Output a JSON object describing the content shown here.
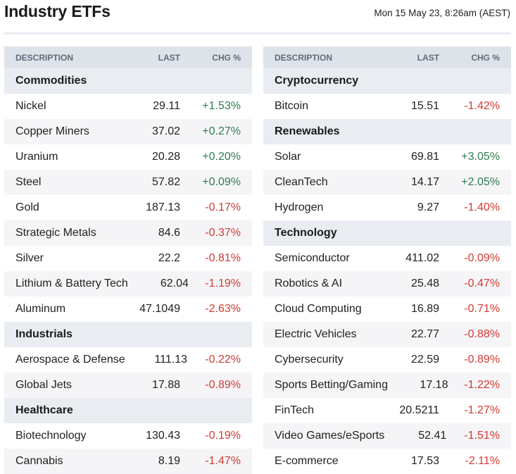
{
  "page": {
    "title": "Industry ETFs",
    "timestamp": "Mon 15 May 23, 8:26am (AEST)"
  },
  "columns": {
    "description": "DESCRIPTION",
    "last": "LAST",
    "chg": "CHG %"
  },
  "colors": {
    "positive": "#2f7d4e",
    "negative": "#d23a33",
    "header_bg": "#dee3ea",
    "section_bg": "#e9ecf1"
  },
  "left": [
    {
      "section": "Commodities",
      "rows": [
        {
          "desc": "Nickel",
          "last": "29.11",
          "chg": "+1.53%"
        },
        {
          "desc": "Copper Miners",
          "last": "37.02",
          "chg": "+0.27%"
        },
        {
          "desc": "Uranium",
          "last": "20.28",
          "chg": "+0.20%"
        },
        {
          "desc": "Steel",
          "last": "57.82",
          "chg": "+0.09%"
        },
        {
          "desc": "Gold",
          "last": "187.13",
          "chg": "-0.17%"
        },
        {
          "desc": "Strategic Metals",
          "last": "84.6",
          "chg": "-0.37%"
        },
        {
          "desc": "Silver",
          "last": "22.2",
          "chg": "-0.81%"
        },
        {
          "desc": "Lithium & Battery Tech",
          "last": "62.04",
          "chg": "-1.19%"
        },
        {
          "desc": "Aluminum",
          "last": "47.1049",
          "chg": "-2.63%"
        }
      ]
    },
    {
      "section": "Industrials",
      "rows": [
        {
          "desc": "Aerospace & Defense",
          "last": "111.13",
          "chg": "-0.22%"
        },
        {
          "desc": "Global Jets",
          "last": "17.88",
          "chg": "-0.89%"
        }
      ]
    },
    {
      "section": "Healthcare",
      "rows": [
        {
          "desc": "Biotechnology",
          "last": "130.43",
          "chg": "-0.19%"
        },
        {
          "desc": "Cannabis",
          "last": "8.19",
          "chg": "-1.47%"
        }
      ]
    }
  ],
  "right": [
    {
      "section": "Cryptocurrency",
      "rows": [
        {
          "desc": "Bitcoin",
          "last": "15.51",
          "chg": "-1.42%"
        }
      ]
    },
    {
      "section": "Renewables",
      "rows": [
        {
          "desc": "Solar",
          "last": "69.81",
          "chg": "+3.05%"
        },
        {
          "desc": "CleanTech",
          "last": "14.17",
          "chg": "+2.05%"
        },
        {
          "desc": "Hydrogen",
          "last": "9.27",
          "chg": "-1.40%"
        }
      ]
    },
    {
      "section": "Technology",
      "rows": [
        {
          "desc": "Semiconductor",
          "last": "411.02",
          "chg": "-0.09%"
        },
        {
          "desc": "Robotics & AI",
          "last": "25.48",
          "chg": "-0.47%"
        },
        {
          "desc": "Cloud Computing",
          "last": "16.89",
          "chg": "-0.71%"
        },
        {
          "desc": "Electric Vehicles",
          "last": "22.77",
          "chg": "-0.88%"
        },
        {
          "desc": "Cybersecurity",
          "last": "22.59",
          "chg": "-0.89%"
        },
        {
          "desc": "Sports Betting/Gaming",
          "last": "17.18",
          "chg": "-1.22%"
        },
        {
          "desc": "FinTech",
          "last": "20.5211",
          "chg": "-1.27%"
        },
        {
          "desc": "Video Games/eSports",
          "last": "52.41",
          "chg": "-1.51%"
        },
        {
          "desc": "E-commerce",
          "last": "17.53",
          "chg": "-2.11%"
        }
      ]
    }
  ]
}
